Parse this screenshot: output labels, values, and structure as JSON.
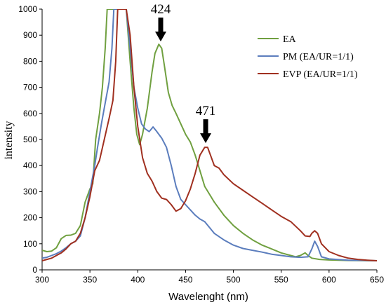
{
  "chart_data": {
    "type": "line",
    "title": "",
    "xlabel": "Wavelenght (nm)",
    "ylabel": "intensity",
    "xlim": [
      300,
      650
    ],
    "ylim": [
      0,
      1000
    ],
    "xticks": [
      300,
      350,
      400,
      450,
      500,
      550,
      600,
      650
    ],
    "yticks": [
      0,
      100,
      200,
      300,
      400,
      500,
      600,
      700,
      800,
      900,
      1000
    ],
    "grid": false,
    "legend_position": "top-right",
    "series": [
      {
        "name": "EA",
        "color": "#70a040",
        "points": [
          [
            300,
            75
          ],
          [
            305,
            70
          ],
          [
            310,
            72
          ],
          [
            315,
            85
          ],
          [
            320,
            120
          ],
          [
            325,
            132
          ],
          [
            330,
            133
          ],
          [
            335,
            140
          ],
          [
            340,
            170
          ],
          [
            345,
            260
          ],
          [
            350,
            310
          ],
          [
            353,
            330
          ],
          [
            356,
            500
          ],
          [
            360,
            600
          ],
          [
            363,
            700
          ],
          [
            366,
            850
          ],
          [
            368,
            1000
          ],
          [
            372,
            1000
          ],
          [
            380,
            1000
          ],
          [
            384,
            1000
          ],
          [
            388,
            1000
          ],
          [
            392,
            800
          ],
          [
            396,
            620
          ],
          [
            399,
            520
          ],
          [
            402,
            480
          ],
          [
            405,
            520
          ],
          [
            410,
            620
          ],
          [
            415,
            760
          ],
          [
            418,
            830
          ],
          [
            422,
            865
          ],
          [
            425,
            850
          ],
          [
            428,
            780
          ],
          [
            432,
            680
          ],
          [
            436,
            630
          ],
          [
            440,
            600
          ],
          [
            445,
            560
          ],
          [
            450,
            520
          ],
          [
            455,
            490
          ],
          [
            460,
            440
          ],
          [
            465,
            380
          ],
          [
            470,
            320
          ],
          [
            475,
            290
          ],
          [
            480,
            260
          ],
          [
            490,
            210
          ],
          [
            500,
            170
          ],
          [
            510,
            140
          ],
          [
            520,
            115
          ],
          [
            530,
            95
          ],
          [
            540,
            80
          ],
          [
            550,
            65
          ],
          [
            560,
            55
          ],
          [
            565,
            50
          ],
          [
            570,
            55
          ],
          [
            575,
            65
          ],
          [
            578,
            55
          ],
          [
            582,
            45
          ],
          [
            590,
            40
          ],
          [
            600,
            38
          ],
          [
            620,
            36
          ],
          [
            650,
            35
          ]
        ]
      },
      {
        "name": "PM (EA/UR=1/1)",
        "color": "#5b7dbd",
        "points": [
          [
            300,
            45
          ],
          [
            305,
            48
          ],
          [
            310,
            55
          ],
          [
            315,
            62
          ],
          [
            320,
            72
          ],
          [
            325,
            85
          ],
          [
            330,
            100
          ],
          [
            335,
            110
          ],
          [
            340,
            130
          ],
          [
            345,
            200
          ],
          [
            350,
            300
          ],
          [
            355,
            400
          ],
          [
            358,
            470
          ],
          [
            362,
            560
          ],
          [
            366,
            640
          ],
          [
            370,
            720
          ],
          [
            373,
            850
          ],
          [
            375,
            1000
          ],
          [
            380,
            1000
          ],
          [
            385,
            1000
          ],
          [
            388,
            1000
          ],
          [
            392,
            850
          ],
          [
            396,
            700
          ],
          [
            400,
            620
          ],
          [
            404,
            560
          ],
          [
            408,
            540
          ],
          [
            412,
            530
          ],
          [
            416,
            548
          ],
          [
            420,
            530
          ],
          [
            425,
            505
          ],
          [
            430,
            470
          ],
          [
            435,
            400
          ],
          [
            440,
            320
          ],
          [
            445,
            270
          ],
          [
            450,
            250
          ],
          [
            455,
            230
          ],
          [
            460,
            210
          ],
          [
            465,
            195
          ],
          [
            470,
            185
          ],
          [
            480,
            140
          ],
          [
            490,
            115
          ],
          [
            500,
            95
          ],
          [
            510,
            82
          ],
          [
            520,
            75
          ],
          [
            530,
            68
          ],
          [
            540,
            60
          ],
          [
            550,
            55
          ],
          [
            560,
            50
          ],
          [
            570,
            48
          ],
          [
            578,
            50
          ],
          [
            582,
            80
          ],
          [
            585,
            110
          ],
          [
            588,
            90
          ],
          [
            592,
            50
          ],
          [
            600,
            42
          ],
          [
            620,
            37
          ],
          [
            650,
            35
          ]
        ]
      },
      {
        "name": "EVP (EA/UR=1/1)",
        "color": "#a03020",
        "points": [
          [
            300,
            35
          ],
          [
            305,
            40
          ],
          [
            310,
            45
          ],
          [
            315,
            55
          ],
          [
            320,
            65
          ],
          [
            325,
            80
          ],
          [
            330,
            100
          ],
          [
            335,
            110
          ],
          [
            340,
            140
          ],
          [
            345,
            200
          ],
          [
            350,
            280
          ],
          [
            355,
            380
          ],
          [
            360,
            420
          ],
          [
            365,
            500
          ],
          [
            370,
            580
          ],
          [
            374,
            650
          ],
          [
            377,
            800
          ],
          [
            379,
            1000
          ],
          [
            384,
            1000
          ],
          [
            388,
            1000
          ],
          [
            392,
            900
          ],
          [
            396,
            700
          ],
          [
            400,
            550
          ],
          [
            405,
            430
          ],
          [
            410,
            370
          ],
          [
            415,
            340
          ],
          [
            420,
            300
          ],
          [
            425,
            275
          ],
          [
            430,
            270
          ],
          [
            435,
            250
          ],
          [
            440,
            225
          ],
          [
            445,
            235
          ],
          [
            450,
            265
          ],
          [
            455,
            310
          ],
          [
            460,
            370
          ],
          [
            465,
            440
          ],
          [
            470,
            470
          ],
          [
            473,
            470
          ],
          [
            476,
            440
          ],
          [
            480,
            400
          ],
          [
            485,
            390
          ],
          [
            490,
            365
          ],
          [
            500,
            330
          ],
          [
            510,
            305
          ],
          [
            520,
            280
          ],
          [
            530,
            255
          ],
          [
            540,
            230
          ],
          [
            550,
            205
          ],
          [
            560,
            185
          ],
          [
            570,
            150
          ],
          [
            575,
            130
          ],
          [
            580,
            128
          ],
          [
            582,
            140
          ],
          [
            585,
            150
          ],
          [
            588,
            140
          ],
          [
            592,
            100
          ],
          [
            600,
            70
          ],
          [
            610,
            55
          ],
          [
            620,
            45
          ],
          [
            630,
            40
          ],
          [
            640,
            37
          ],
          [
            650,
            35
          ]
        ]
      }
    ],
    "annotations": [
      {
        "text": "424",
        "x": 424,
        "arrow_tip_y": 860
      },
      {
        "text": "471",
        "x": 471,
        "arrow_tip_y": 470
      }
    ]
  }
}
